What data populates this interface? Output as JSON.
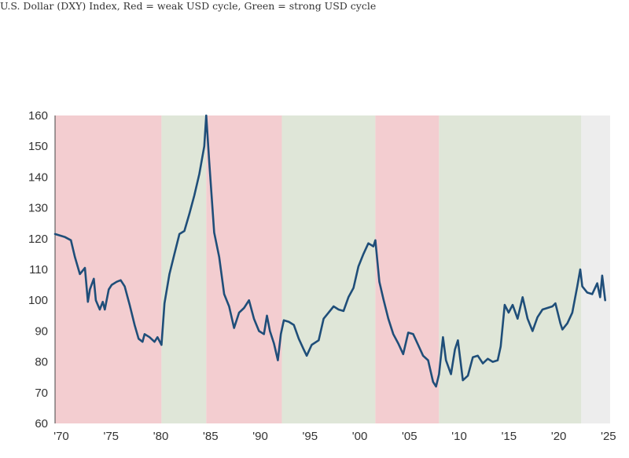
{
  "chart_data": {
    "type": "line",
    "title": "U.S. Dollar (DXY) Index, Red = weak USD cycle, Green = strong USD cycle",
    "xlabel": "",
    "ylabel": "",
    "xlim": [
      1970,
      2025.8
    ],
    "ylim": [
      60,
      160
    ],
    "xticks": [
      {
        "value": 1970,
        "label": "'70"
      },
      {
        "value": 1975,
        "label": "'75"
      },
      {
        "value": 1980,
        "label": "'80"
      },
      {
        "value": 1985,
        "label": "'85"
      },
      {
        "value": 1990,
        "label": "'90"
      },
      {
        "value": 1995,
        "label": "'95"
      },
      {
        "value": 2000,
        "label": "'00"
      },
      {
        "value": 2005,
        "label": "'05"
      },
      {
        "value": 2010,
        "label": "'10"
      },
      {
        "value": 2015,
        "label": "'15"
      },
      {
        "value": 2020,
        "label": "'20"
      },
      {
        "value": 2025,
        "label": "'25"
      }
    ],
    "yticks": [
      60,
      70,
      80,
      90,
      100,
      110,
      120,
      130,
      140,
      150,
      160
    ],
    "grid": false,
    "cycles": [
      {
        "start": 1970,
        "end": 1980.7,
        "kind": "weak",
        "color": "#f3cdd0"
      },
      {
        "start": 1980.7,
        "end": 1985.2,
        "kind": "strong",
        "color": "#dfe6d8"
      },
      {
        "start": 1985.2,
        "end": 1992.8,
        "kind": "weak",
        "color": "#f3cdd0"
      },
      {
        "start": 1992.8,
        "end": 2002.2,
        "kind": "strong",
        "color": "#dfe6d8"
      },
      {
        "start": 2002.2,
        "end": 2008.6,
        "kind": "weak",
        "color": "#f3cdd0"
      },
      {
        "start": 2008.6,
        "end": 2022.9,
        "kind": "strong",
        "color": "#dfe6d8"
      },
      {
        "start": 2022.9,
        "end": 2025.8,
        "kind": "current",
        "color": "#ededed"
      }
    ],
    "series": [
      {
        "color": "#1f4e79",
        "x": [
          1970.0,
          1971.0,
          1971.6,
          1972.0,
          1972.5,
          1973.0,
          1973.3,
          1973.5,
          1973.9,
          1974.1,
          1974.5,
          1974.8,
          1975.0,
          1975.4,
          1975.7,
          1976.2,
          1976.6,
          1977.0,
          1977.5,
          1978.0,
          1978.4,
          1978.8,
          1979.0,
          1979.5,
          1980.0,
          1980.3,
          1980.7,
          1981.0,
          1981.5,
          1982.0,
          1982.5,
          1983.0,
          1983.5,
          1984.0,
          1984.5,
          1985.0,
          1985.2,
          1985.5,
          1986.0,
          1986.5,
          1987.0,
          1987.5,
          1988.0,
          1988.5,
          1989.0,
          1989.5,
          1990.0,
          1990.5,
          1991.0,
          1991.3,
          1991.6,
          1992.0,
          1992.4,
          1992.7,
          1993.0,
          1993.5,
          1994.0,
          1994.5,
          1995.0,
          1995.3,
          1995.8,
          1996.5,
          1997.0,
          1997.5,
          1998.0,
          1998.5,
          1999.0,
          1999.5,
          2000.0,
          2000.5,
          2001.0,
          2001.5,
          2002.0,
          2002.2,
          2002.6,
          2003.0,
          2003.5,
          2004.0,
          2004.5,
          2005.0,
          2005.5,
          2006.0,
          2006.5,
          2007.0,
          2007.5,
          2008.0,
          2008.3,
          2008.6,
          2009.0,
          2009.3,
          2009.8,
          2010.2,
          2010.5,
          2011.0,
          2011.5,
          2012.0,
          2012.5,
          2013.0,
          2013.5,
          2014.0,
          2014.5,
          2014.8,
          2015.2,
          2015.6,
          2016.0,
          2016.5,
          2017.0,
          2017.5,
          2018.0,
          2018.5,
          2019.0,
          2019.5,
          2020.0,
          2020.3,
          2020.8,
          2021.0,
          2021.5,
          2022.0,
          2022.5,
          2022.8,
          2023.0,
          2023.5,
          2024.0,
          2024.5,
          2024.8,
          2025.0,
          2025.3
        ],
        "values": [
          121.5,
          120.5,
          119.5,
          114.0,
          108.5,
          110.5,
          99.5,
          103.5,
          107.0,
          100.0,
          97.0,
          99.5,
          97.0,
          103.5,
          105.0,
          106.0,
          106.5,
          104.5,
          98.5,
          92.0,
          87.5,
          86.5,
          89.0,
          88.0,
          86.5,
          88.0,
          85.5,
          99.0,
          108.5,
          115.0,
          121.5,
          122.5,
          128.0,
          134.0,
          141.0,
          150.0,
          160.0,
          145.0,
          122.0,
          114.0,
          102.0,
          98.0,
          91.0,
          96.0,
          97.5,
          100.0,
          94.0,
          90.0,
          89.0,
          95.0,
          90.0,
          86.0,
          80.5,
          89.0,
          93.5,
          93.0,
          92.0,
          87.5,
          84.0,
          82.0,
          85.5,
          87.0,
          94.0,
          96.0,
          98.0,
          97.0,
          96.5,
          101.0,
          104.0,
          111.0,
          115.0,
          118.5,
          117.5,
          119.5,
          106.0,
          100.5,
          94.0,
          89.0,
          86.0,
          82.5,
          89.5,
          89.0,
          85.5,
          82.0,
          80.5,
          73.5,
          72.0,
          76.0,
          88.0,
          80.5,
          76.0,
          84.0,
          87.0,
          74.0,
          75.5,
          81.5,
          82.0,
          79.5,
          81.0,
          80.0,
          80.5,
          85.0,
          98.5,
          96.0,
          98.5,
          94.0,
          101.0,
          94.0,
          90.0,
          94.5,
          97.0,
          97.5,
          98.0,
          99.0,
          92.5,
          90.5,
          92.5,
          96.0,
          104.5,
          110.0,
          104.5,
          102.5,
          102.0,
          105.5,
          101.0,
          108.0,
          100.0
        ]
      }
    ]
  }
}
